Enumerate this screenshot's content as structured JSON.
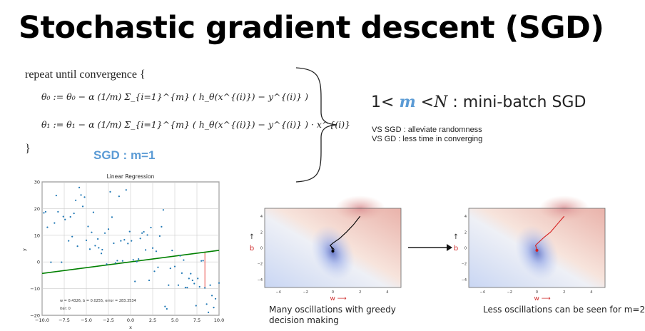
{
  "title": "Stochastic gradient descent (SGD)",
  "algorithm": {
    "line1": "repeat until convergence {",
    "line2": "θ₀ := θ₀ − α (1/m) Σ_{i=1}^{m} ( h_θ(x^{(i)}) − y^{(i)} )",
    "line3": "θ₁ := θ₁ − α (1/m) Σ_{i=1}^{m} ( h_θ(x^{(i)}) − y^{(i)} ) · x^{(i)}",
    "line4": "}",
    "sgd_label": "SGD : m=1"
  },
  "minibatch": {
    "prefix": "1<",
    "m": "m",
    "lt": "<",
    "n": "N",
    "suffix": ": mini-batch SGD"
  },
  "notes": [
    "VS SGD : alleviate randomness",
    "VS GD : less time in converging"
  ],
  "accent": "#5b9bd5",
  "chart_data": [
    {
      "type": "scatter",
      "title": "Linear Regression",
      "xlabel": "x",
      "ylabel": "y",
      "xlim": [
        -10,
        10
      ],
      "ylim": [
        -20,
        30
      ],
      "xticks": [
        "−10.0",
        "−7.5",
        "−5.0",
        "−2.5",
        "0.0",
        "2.5",
        "5.0",
        "7.5",
        "10.0"
      ],
      "yticks": [
        "−20",
        "−10",
        "0",
        "10",
        "20",
        "30"
      ],
      "grid": true,
      "points": [
        [
          -9.8,
          18.4
        ],
        [
          -9.6,
          18.8
        ],
        [
          -9.4,
          13
        ],
        [
          -9,
          -0.1
        ],
        [
          -8.6,
          14.6
        ],
        [
          -8.4,
          24.9
        ],
        [
          -8.2,
          18.8
        ],
        [
          -7.8,
          -0.1
        ],
        [
          -7.6,
          17
        ],
        [
          -7.4,
          15.9
        ],
        [
          -7,
          7.9
        ],
        [
          -6.8,
          16.9
        ],
        [
          -6.6,
          9.5
        ],
        [
          -6.4,
          18.2
        ],
        [
          -6.2,
          23.1
        ],
        [
          -6,
          5.9
        ],
        [
          -5.8,
          27.9
        ],
        [
          -5.6,
          25.1
        ],
        [
          -5.4,
          20.8
        ],
        [
          -5.2,
          24.3
        ],
        [
          -5,
          8.1
        ],
        [
          -4.8,
          13.3
        ],
        [
          -4.6,
          4.8
        ],
        [
          -4.4,
          11.1
        ],
        [
          -4.2,
          18.6
        ],
        [
          -4,
          6.1
        ],
        [
          -3.7,
          8.6
        ],
        [
          -3.6,
          5.3
        ],
        [
          -3.3,
          3.2
        ],
        [
          -3.2,
          4.6
        ],
        [
          -2.9,
          10.8
        ],
        [
          -2.7,
          -0.8
        ],
        [
          -2.5,
          12.3
        ],
        [
          -2.3,
          26.3
        ],
        [
          -2.1,
          16.8
        ],
        [
          -1.9,
          7
        ],
        [
          -1.7,
          -0.4
        ],
        [
          -1.5,
          0.5
        ],
        [
          -1.3,
          24.6
        ],
        [
          -1.1,
          7.9
        ],
        [
          -0.9,
          0.4
        ],
        [
          -0.7,
          8.3
        ],
        [
          -0.5,
          27
        ],
        [
          -0.3,
          6.9
        ],
        [
          -0.1,
          11.4
        ],
        [
          0.1,
          7.9
        ],
        [
          0.3,
          0.8
        ],
        [
          0.5,
          -7.3
        ],
        [
          0.7,
          0.1
        ],
        [
          0.9,
          1.1
        ],
        [
          1.1,
          8.8
        ],
        [
          1.3,
          10.8
        ],
        [
          1.5,
          11.3
        ],
        [
          1.7,
          4.5
        ],
        [
          1.9,
          10.1
        ],
        [
          2.1,
          -6.9
        ],
        [
          2.3,
          12.9
        ],
        [
          2.5,
          5.2
        ],
        [
          2.7,
          -3.5
        ],
        [
          2.9,
          4
        ],
        [
          3.1,
          -2
        ],
        [
          3.3,
          9.7
        ],
        [
          3.5,
          13.2
        ],
        [
          3.7,
          19.5
        ],
        [
          3.9,
          -16.7
        ],
        [
          4.1,
          -17.6
        ],
        [
          4.3,
          -8.7
        ],
        [
          4.5,
          -2.4
        ],
        [
          4.7,
          4.3
        ],
        [
          5,
          -1.7
        ],
        [
          5.4,
          -8.7
        ],
        [
          5.6,
          2.3
        ],
        [
          5.8,
          -4.2
        ],
        [
          6,
          0.7
        ],
        [
          6.2,
          -9.6
        ],
        [
          6.4,
          -9.6
        ],
        [
          6.6,
          -6.2
        ],
        [
          6.8,
          -4.4
        ],
        [
          7,
          -6.9
        ],
        [
          7.2,
          -8.1
        ],
        [
          7.4,
          -16.4
        ],
        [
          7.6,
          -6.2
        ],
        [
          7.8,
          -9.3
        ],
        [
          8,
          0.4
        ],
        [
          8.2,
          0.5
        ],
        [
          8.4,
          -9.7
        ],
        [
          8.6,
          -15.8
        ],
        [
          8.8,
          -18.9
        ],
        [
          9,
          -8.7
        ],
        [
          9.2,
          -12.6
        ],
        [
          9.4,
          -17.1
        ],
        [
          9.6,
          -13.8
        ],
        [
          10,
          -7.9
        ]
      ],
      "fit_line": {
        "w": 0.4326,
        "b": 0.0255,
        "color": "#008000"
      },
      "residual": {
        "x": 8.4,
        "y": -9.7,
        "color": "#e8413c"
      },
      "point_color": "#1f77b4",
      "annotation": "w = 0.4326, b = 0.0255, error = 283.3534",
      "iter": "iter: 0"
    },
    {
      "type": "heatmap",
      "xlabel": "w ⟶",
      "ylabel": "b",
      "ylabel_arrow": "↑",
      "xlim": [
        -5,
        5
      ],
      "ylim": [
        -5,
        5
      ],
      "xticks": [
        "−4",
        "−2",
        "0",
        "2",
        "4"
      ],
      "yticks": [
        "4",
        "2",
        "0",
        "−2",
        "−4"
      ],
      "path_color": "#000000",
      "path": [
        [
          2,
          4
        ],
        [
          1.5,
          2.9
        ],
        [
          1,
          2
        ],
        [
          0.5,
          1.2
        ],
        [
          0,
          0.6
        ],
        [
          -0.2,
          0.3
        ],
        [
          0.1,
          -0.2
        ],
        [
          -0.1,
          0.1
        ],
        [
          0,
          -0.4
        ]
      ],
      "caption": "Many oscillations with greedy decision making"
    },
    {
      "type": "heatmap",
      "xlabel": "w ⟶",
      "ylabel": "b",
      "ylabel_arrow": "↑",
      "xlim": [
        -5,
        5
      ],
      "ylim": [
        -5,
        5
      ],
      "xticks": [
        "−4",
        "−2",
        "0",
        "2",
        "4"
      ],
      "yticks": [
        "4",
        "2",
        "0",
        "−2",
        "−4"
      ],
      "path_color": "#d62020",
      "path": [
        [
          2,
          4
        ],
        [
          1.5,
          3
        ],
        [
          1,
          2
        ],
        [
          0.5,
          1.3
        ],
        [
          0,
          0.5
        ],
        [
          -0.1,
          0.3
        ],
        [
          0,
          -0.2
        ],
        [
          0,
          -0.3
        ]
      ],
      "caption": "Less oscillations can be seen for m=2"
    }
  ]
}
